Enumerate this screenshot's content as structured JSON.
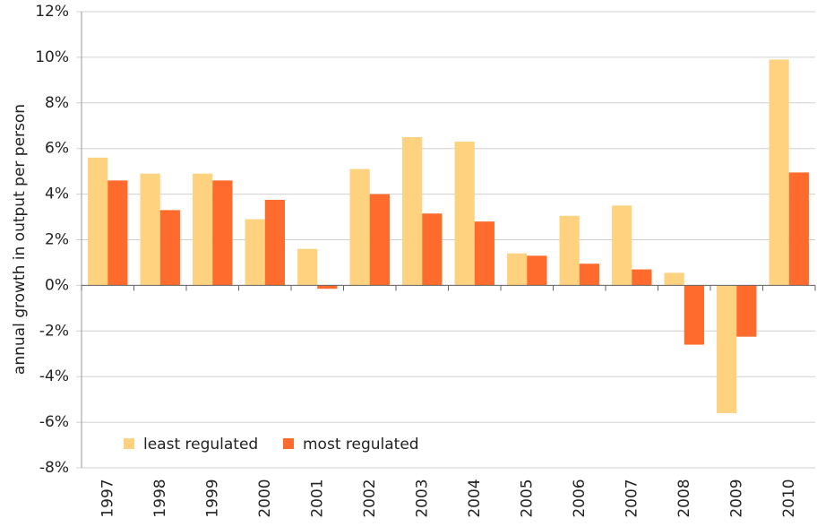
{
  "chart_data": {
    "type": "bar",
    "y_label": "annual growth in output per person",
    "categories": [
      "1997",
      "1998",
      "1999",
      "2000",
      "2001",
      "2002",
      "2003",
      "2004",
      "2005",
      "2006",
      "2007",
      "2008",
      "2009",
      "2010"
    ],
    "series": [
      {
        "name": "least regulated",
        "color": "#ffd27f",
        "values": [
          5.6,
          4.9,
          4.9,
          2.9,
          1.6,
          5.1,
          6.5,
          6.3,
          1.4,
          3.05,
          3.5,
          0.55,
          -5.6,
          9.9
        ]
      },
      {
        "name": "most regulated",
        "color": "#ff6b2c",
        "values": [
          4.6,
          3.3,
          4.6,
          3.75,
          -0.15,
          4.0,
          3.15,
          2.8,
          1.3,
          0.95,
          0.7,
          -2.6,
          -2.25,
          4.95
        ]
      }
    ],
    "ylim": [
      -8,
      12
    ],
    "yticks": [
      {
        "value": -8,
        "label": "-8%"
      },
      {
        "value": -6,
        "label": "-6%"
      },
      {
        "value": -4,
        "label": "-4%"
      },
      {
        "value": -2,
        "label": "-2%"
      },
      {
        "value": 0,
        "label": "0%"
      },
      {
        "value": 2,
        "label": "2%"
      },
      {
        "value": 4,
        "label": "4%"
      },
      {
        "value": 6,
        "label": "6%"
      },
      {
        "value": 8,
        "label": "8%"
      },
      {
        "value": 10,
        "label": "10%"
      },
      {
        "value": 12,
        "label": "12%"
      }
    ],
    "grid": true,
    "legend": "bottom-left"
  }
}
